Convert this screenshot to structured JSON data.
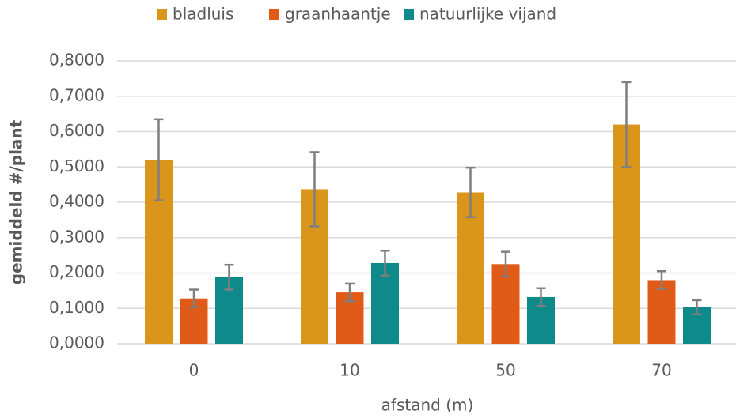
{
  "chart_data": {
    "type": "bar",
    "x_label": "afstand (m)",
    "y_label": "gemiddeld #/plant",
    "categories": [
      "0",
      "10",
      "50",
      "70"
    ],
    "series": [
      {
        "name": "bladluis",
        "color": "#d9961a",
        "values": [
          0.52,
          0.437,
          0.428,
          0.62
        ],
        "errors": [
          0.115,
          0.105,
          0.07,
          0.12
        ]
      },
      {
        "name": "graanhaantje",
        "color": "#e05a18",
        "values": [
          0.128,
          0.145,
          0.225,
          0.18
        ],
        "errors": [
          0.025,
          0.025,
          0.035,
          0.025
        ]
      },
      {
        "name": "natuurlijke vijand",
        "color": "#0f8a8a",
        "values": [
          0.188,
          0.228,
          0.132,
          0.103
        ],
        "errors": [
          0.035,
          0.035,
          0.025,
          0.02
        ]
      }
    ],
    "ylim": [
      0,
      0.8
    ],
    "yticks": [
      {
        "value": 0,
        "label": "0,0000"
      },
      {
        "value": 0.1,
        "label": "0,1000"
      },
      {
        "value": 0.2,
        "label": "0,2000"
      },
      {
        "value": 0.3,
        "label": "0,3000"
      },
      {
        "value": 0.4,
        "label": "0,4000"
      },
      {
        "value": 0.5,
        "label": "0,5000"
      },
      {
        "value": 0.6,
        "label": "0,6000"
      },
      {
        "value": 0.7,
        "label": "0,7000"
      },
      {
        "value": 0.8,
        "label": "0,8000"
      }
    ],
    "grid": true,
    "legend": "top",
    "error_color": "#7f7f7f"
  }
}
